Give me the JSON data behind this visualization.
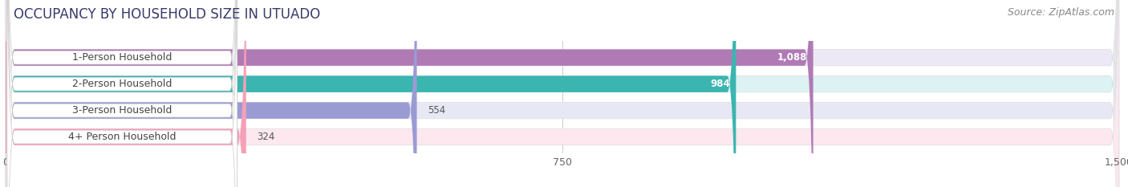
{
  "title": "OCCUPANCY BY HOUSEHOLD SIZE IN UTUADO",
  "source": "Source: ZipAtlas.com",
  "categories": [
    "1-Person Household",
    "2-Person Household",
    "3-Person Household",
    "4+ Person Household"
  ],
  "values": [
    1088,
    984,
    554,
    324
  ],
  "bar_colors": [
    "#b07ab5",
    "#3ab5b0",
    "#9b9bd4",
    "#f5a0b8"
  ],
  "bar_bg_colors": [
    "#ede8f5",
    "#ddf2f2",
    "#e8e8f5",
    "#fde8f0"
  ],
  "xlim": [
    0,
    1500
  ],
  "xticks": [
    0,
    750,
    1500
  ],
  "label_colors_inside": [
    "#ffffff",
    "#ffffff",
    "#555555",
    "#555555"
  ],
  "value_colors": [
    "#ffffff",
    "#ffffff",
    "#555555",
    "#555555"
  ],
  "background_color": "#ffffff",
  "plot_bg_color": "#ffffff",
  "title_fontsize": 12,
  "source_fontsize": 9,
  "bar_height": 0.62,
  "figsize": [
    14.06,
    2.33
  ],
  "dpi": 100
}
